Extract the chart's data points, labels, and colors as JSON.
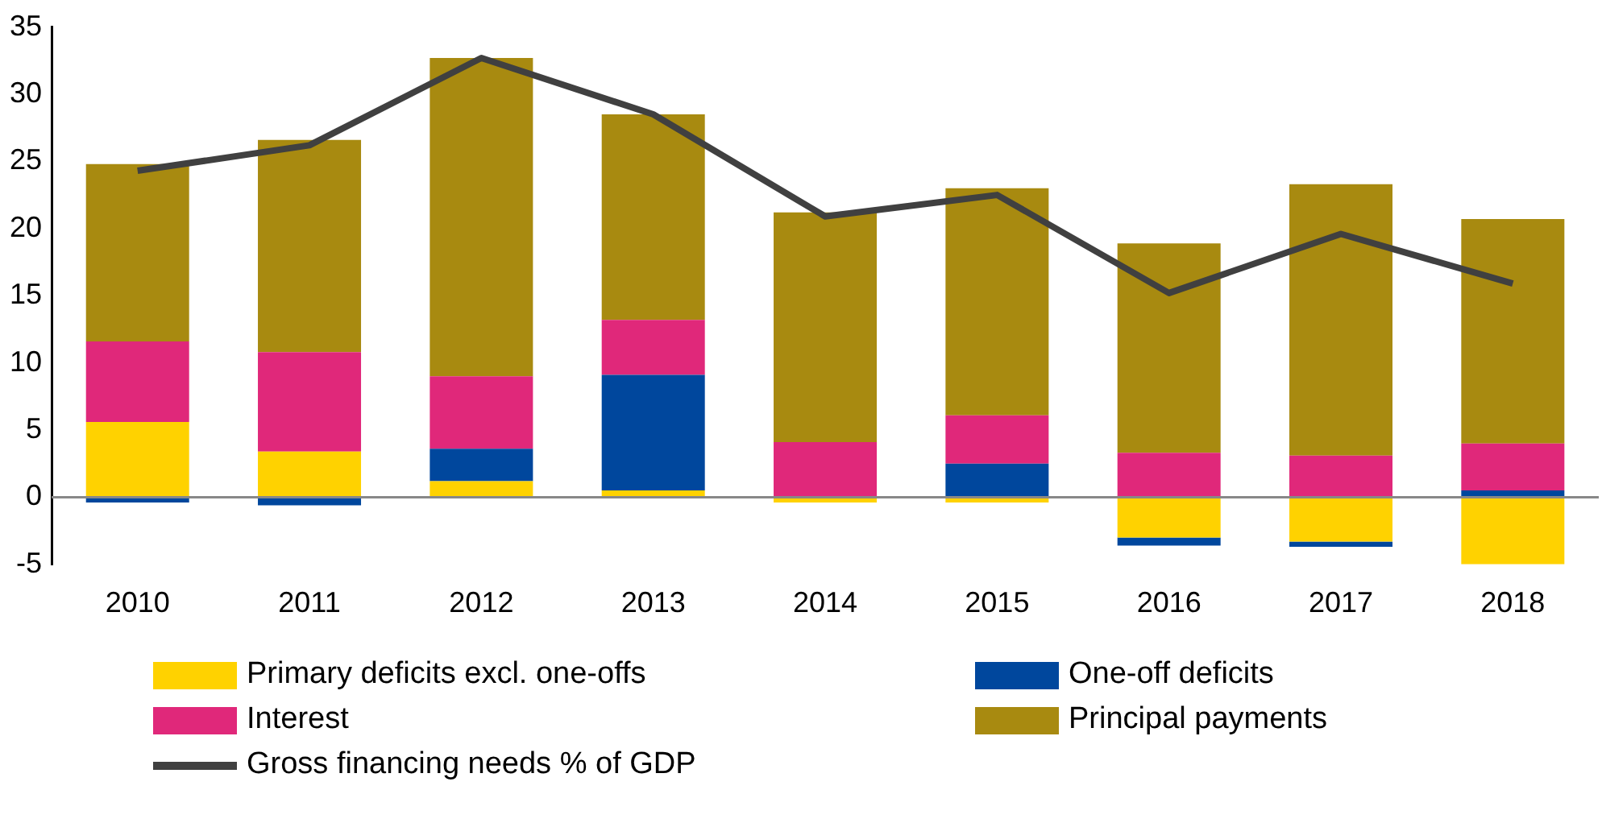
{
  "chart_data": {
    "type": "bar",
    "stacked": true,
    "legend": "bottom",
    "categories": [
      "2010",
      "2011",
      "2012",
      "2013",
      "2014",
      "2015",
      "2016",
      "2017",
      "2018"
    ],
    "ylim": [
      -5,
      35
    ],
    "yticks": [
      -5,
      0,
      5,
      10,
      15,
      20,
      25,
      30,
      35
    ],
    "series": [
      {
        "name": "Primary deficits excl. one-offs",
        "color": "#ffd200",
        "values": [
          5.6,
          3.4,
          1.2,
          0.5,
          -0.4,
          -0.4,
          -3.0,
          -3.3,
          -5.0
        ]
      },
      {
        "name": "One-off deficits",
        "color": "#00479d",
        "values": [
          -0.4,
          -0.6,
          2.4,
          8.6,
          0,
          2.5,
          -0.6,
          -0.4,
          0.5
        ]
      },
      {
        "name": "Interest",
        "color": "#e0287a",
        "values": [
          6.0,
          7.4,
          5.4,
          4.1,
          4.1,
          3.6,
          3.3,
          3.1,
          3.5
        ]
      },
      {
        "name": "Principal payments",
        "color": "#a88a10",
        "values": [
          13.2,
          15.8,
          23.7,
          15.3,
          17.1,
          16.9,
          15.6,
          20.2,
          16.7
        ]
      },
      {
        "name": "Gross financing needs % of GDP",
        "type": "line",
        "color": "#404040",
        "values": [
          24.3,
          26.2,
          32.7,
          28.5,
          20.9,
          22.5,
          15.2,
          19.6,
          15.9
        ]
      }
    ]
  }
}
